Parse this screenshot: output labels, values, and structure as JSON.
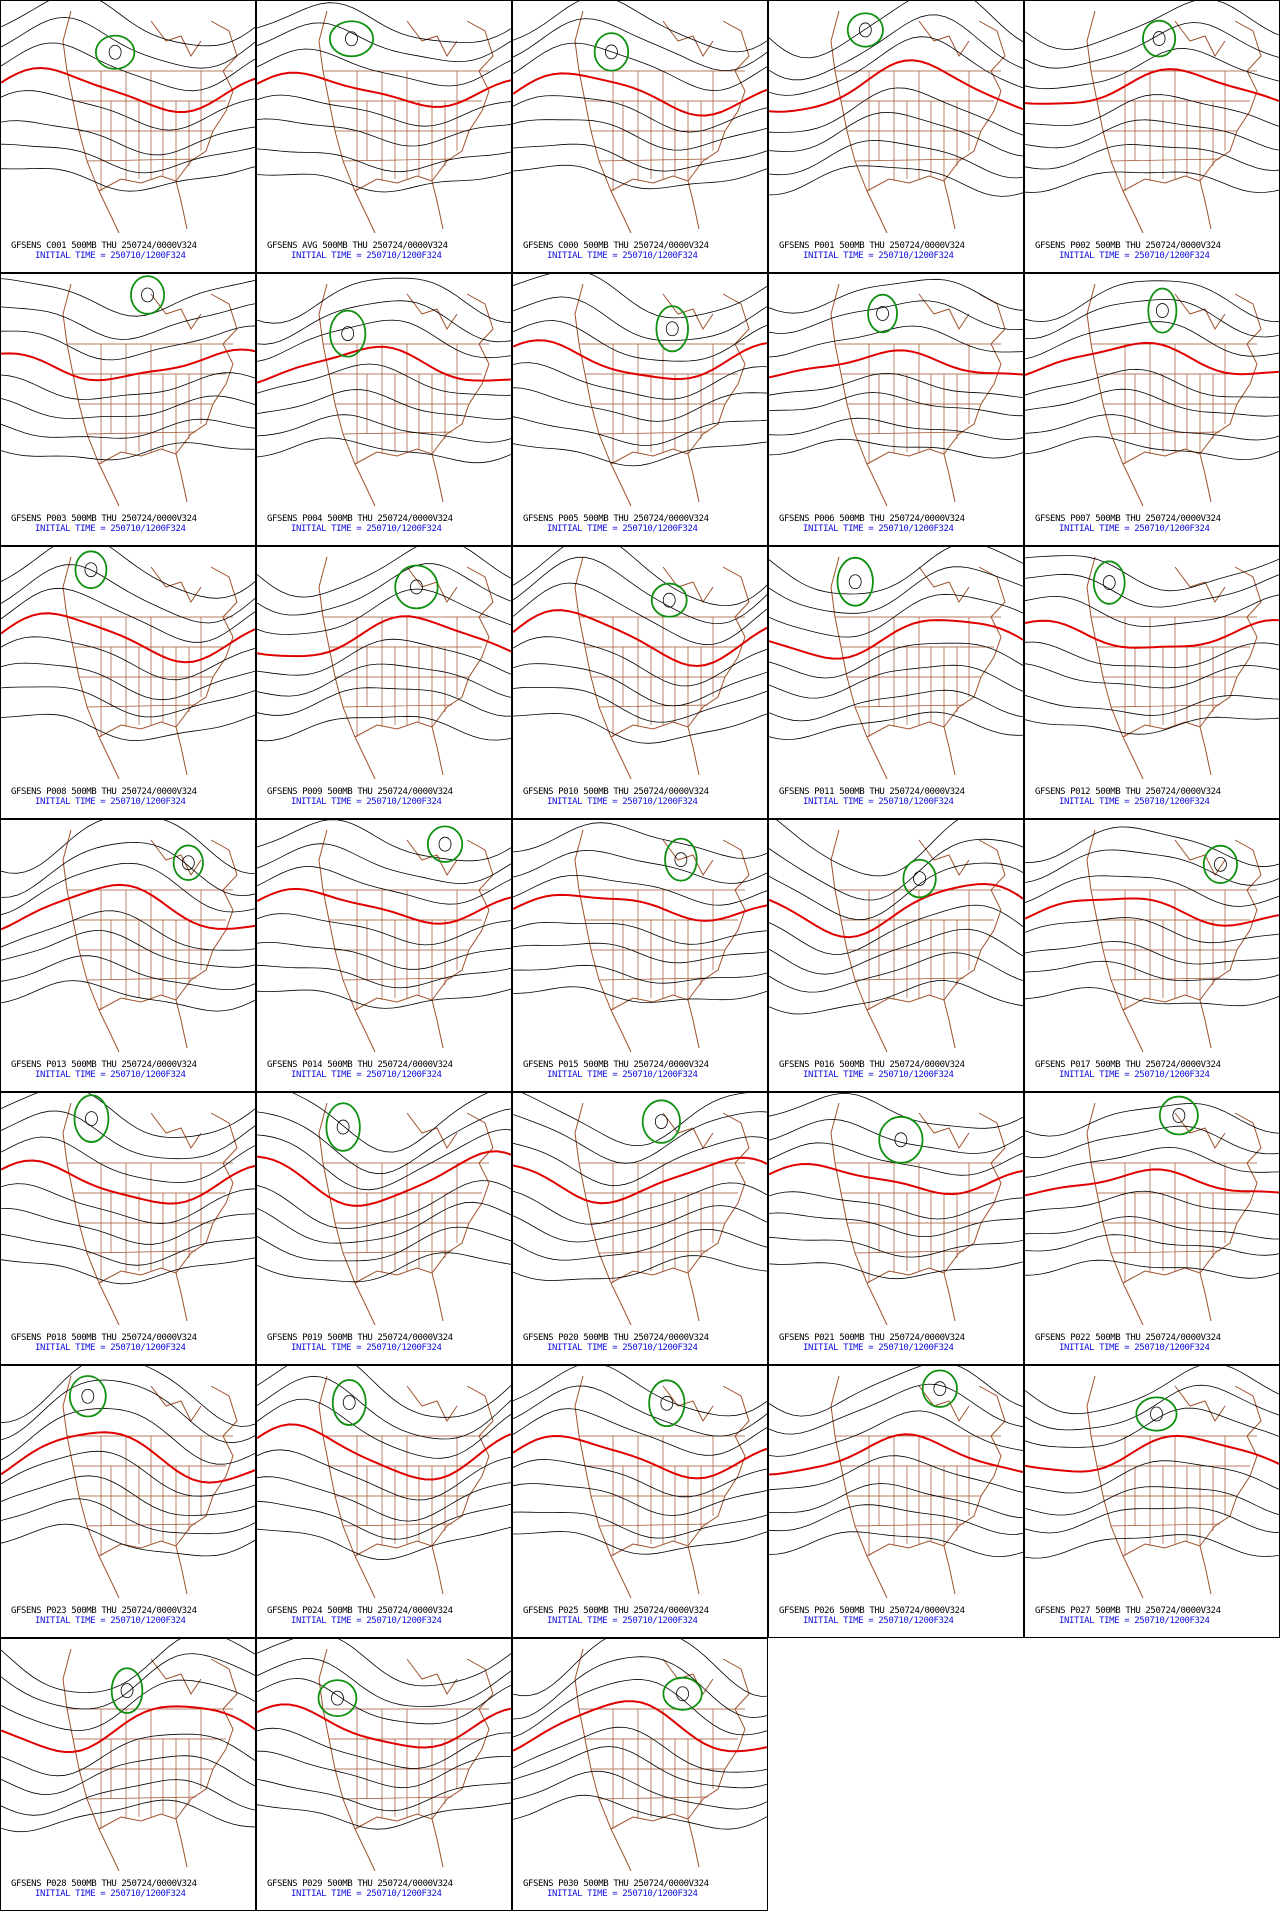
{
  "panels": [
    {
      "title": "GFSENS C001 500MB THU 250724/0000V324",
      "init": "INITIAL TIME = 250710/1200F324"
    },
    {
      "title": "GFSENS AVG 500MB THU 250724/0000V324",
      "init": "INITIAL TIME = 250710/1200F324"
    },
    {
      "title": "GFSENS C000 500MB THU 250724/0000V324",
      "init": "INITIAL TIME = 250710/1200F324"
    },
    {
      "title": "GFSENS P001 500MB THU 250724/0000V324",
      "init": "INITIAL TIME = 250710/1200F324"
    },
    {
      "title": "GFSENS P002 500MB THU 250724/0000V324",
      "init": "INITIAL TIME = 250710/1200F324"
    },
    {
      "title": "GFSENS P003 500MB THU 250724/0000V324",
      "init": "INITIAL TIME = 250710/1200F324"
    },
    {
      "title": "GFSENS P004 500MB THU 250724/0000V324",
      "init": "INITIAL TIME = 250710/1200F324"
    },
    {
      "title": "GFSENS P005 500MB THU 250724/0000V324",
      "init": "INITIAL TIME = 250710/1200F324"
    },
    {
      "title": "GFSENS P006 500MB THU 250724/0000V324",
      "init": "INITIAL TIME = 250710/1200F324"
    },
    {
      "title": "GFSENS P007 500MB THU 250724/0000V324",
      "init": "INITIAL TIME = 250710/1200F324"
    },
    {
      "title": "GFSENS P008 500MB THU 250724/0000V324",
      "init": "INITIAL TIME = 250710/1200F324"
    },
    {
      "title": "GFSENS P009 500MB THU 250724/0000V324",
      "init": "INITIAL TIME = 250710/1200F324"
    },
    {
      "title": "GFSENS P010 500MB THU 250724/0000V324",
      "init": "INITIAL TIME = 250710/1200F324"
    },
    {
      "title": "GFSENS P011 500MB THU 250724/0000V324",
      "init": "INITIAL TIME = 250710/1200F324"
    },
    {
      "title": "GFSENS P012 500MB THU 250724/0000V324",
      "init": "INITIAL TIME = 250710/1200F324"
    },
    {
      "title": "GFSENS P013 500MB THU 250724/0000V324",
      "init": "INITIAL TIME = 250710/1200F324"
    },
    {
      "title": "GFSENS P014 500MB THU 250724/0000V324",
      "init": "INITIAL TIME = 250710/1200F324"
    },
    {
      "title": "GFSENS P015 500MB THU 250724/0000V324",
      "init": "INITIAL TIME = 250710/1200F324"
    },
    {
      "title": "GFSENS P016 500MB THU 250724/0000V324",
      "init": "INITIAL TIME = 250710/1200F324"
    },
    {
      "title": "GFSENS P017 500MB THU 250724/0000V324",
      "init": "INITIAL TIME = 250710/1200F324"
    },
    {
      "title": "GFSENS P018 500MB THU 250724/0000V324",
      "init": "INITIAL TIME = 250710/1200F324"
    },
    {
      "title": "GFSENS P019 500MB THU 250724/0000V324",
      "init": "INITIAL TIME = 250710/1200F324"
    },
    {
      "title": "GFSENS P020 500MB THU 250724/0000V324",
      "init": "INITIAL TIME = 250710/1200F324"
    },
    {
      "title": "GFSENS P021 500MB THU 250724/0000V324",
      "init": "INITIAL TIME = 250710/1200F324"
    },
    {
      "title": "GFSENS P022 500MB THU 250724/0000V324",
      "init": "INITIAL TIME = 250710/1200F324"
    },
    {
      "title": "GFSENS P023 500MB THU 250724/0000V324",
      "init": "INITIAL TIME = 250710/1200F324"
    },
    {
      "title": "GFSENS P024 500MB THU 250724/0000V324",
      "init": "INITIAL TIME = 250710/1200F324"
    },
    {
      "title": "GFSENS P025 500MB THU 250724/0000V324",
      "init": "INITIAL TIME = 250710/1200F324"
    },
    {
      "title": "GFSENS P026 500MB THU 250724/0000V324",
      "init": "INITIAL TIME = 250710/1200F324"
    },
    {
      "title": "GFSENS P027 500MB THU 250724/0000V324",
      "init": "INITIAL TIME = 250710/1200F324"
    },
    {
      "title": "GFSENS P028 500MB THU 250724/0000V324",
      "init": "INITIAL TIME = 250710/1200F324"
    },
    {
      "title": "GFSENS P029 500MB THU 250724/0000V324",
      "init": "INITIAL TIME = 250710/1200F324"
    },
    {
      "title": "GFSENS P030 500MB THU 250724/0000V324",
      "init": "INITIAL TIME = 250710/1200F324"
    }
  ]
}
